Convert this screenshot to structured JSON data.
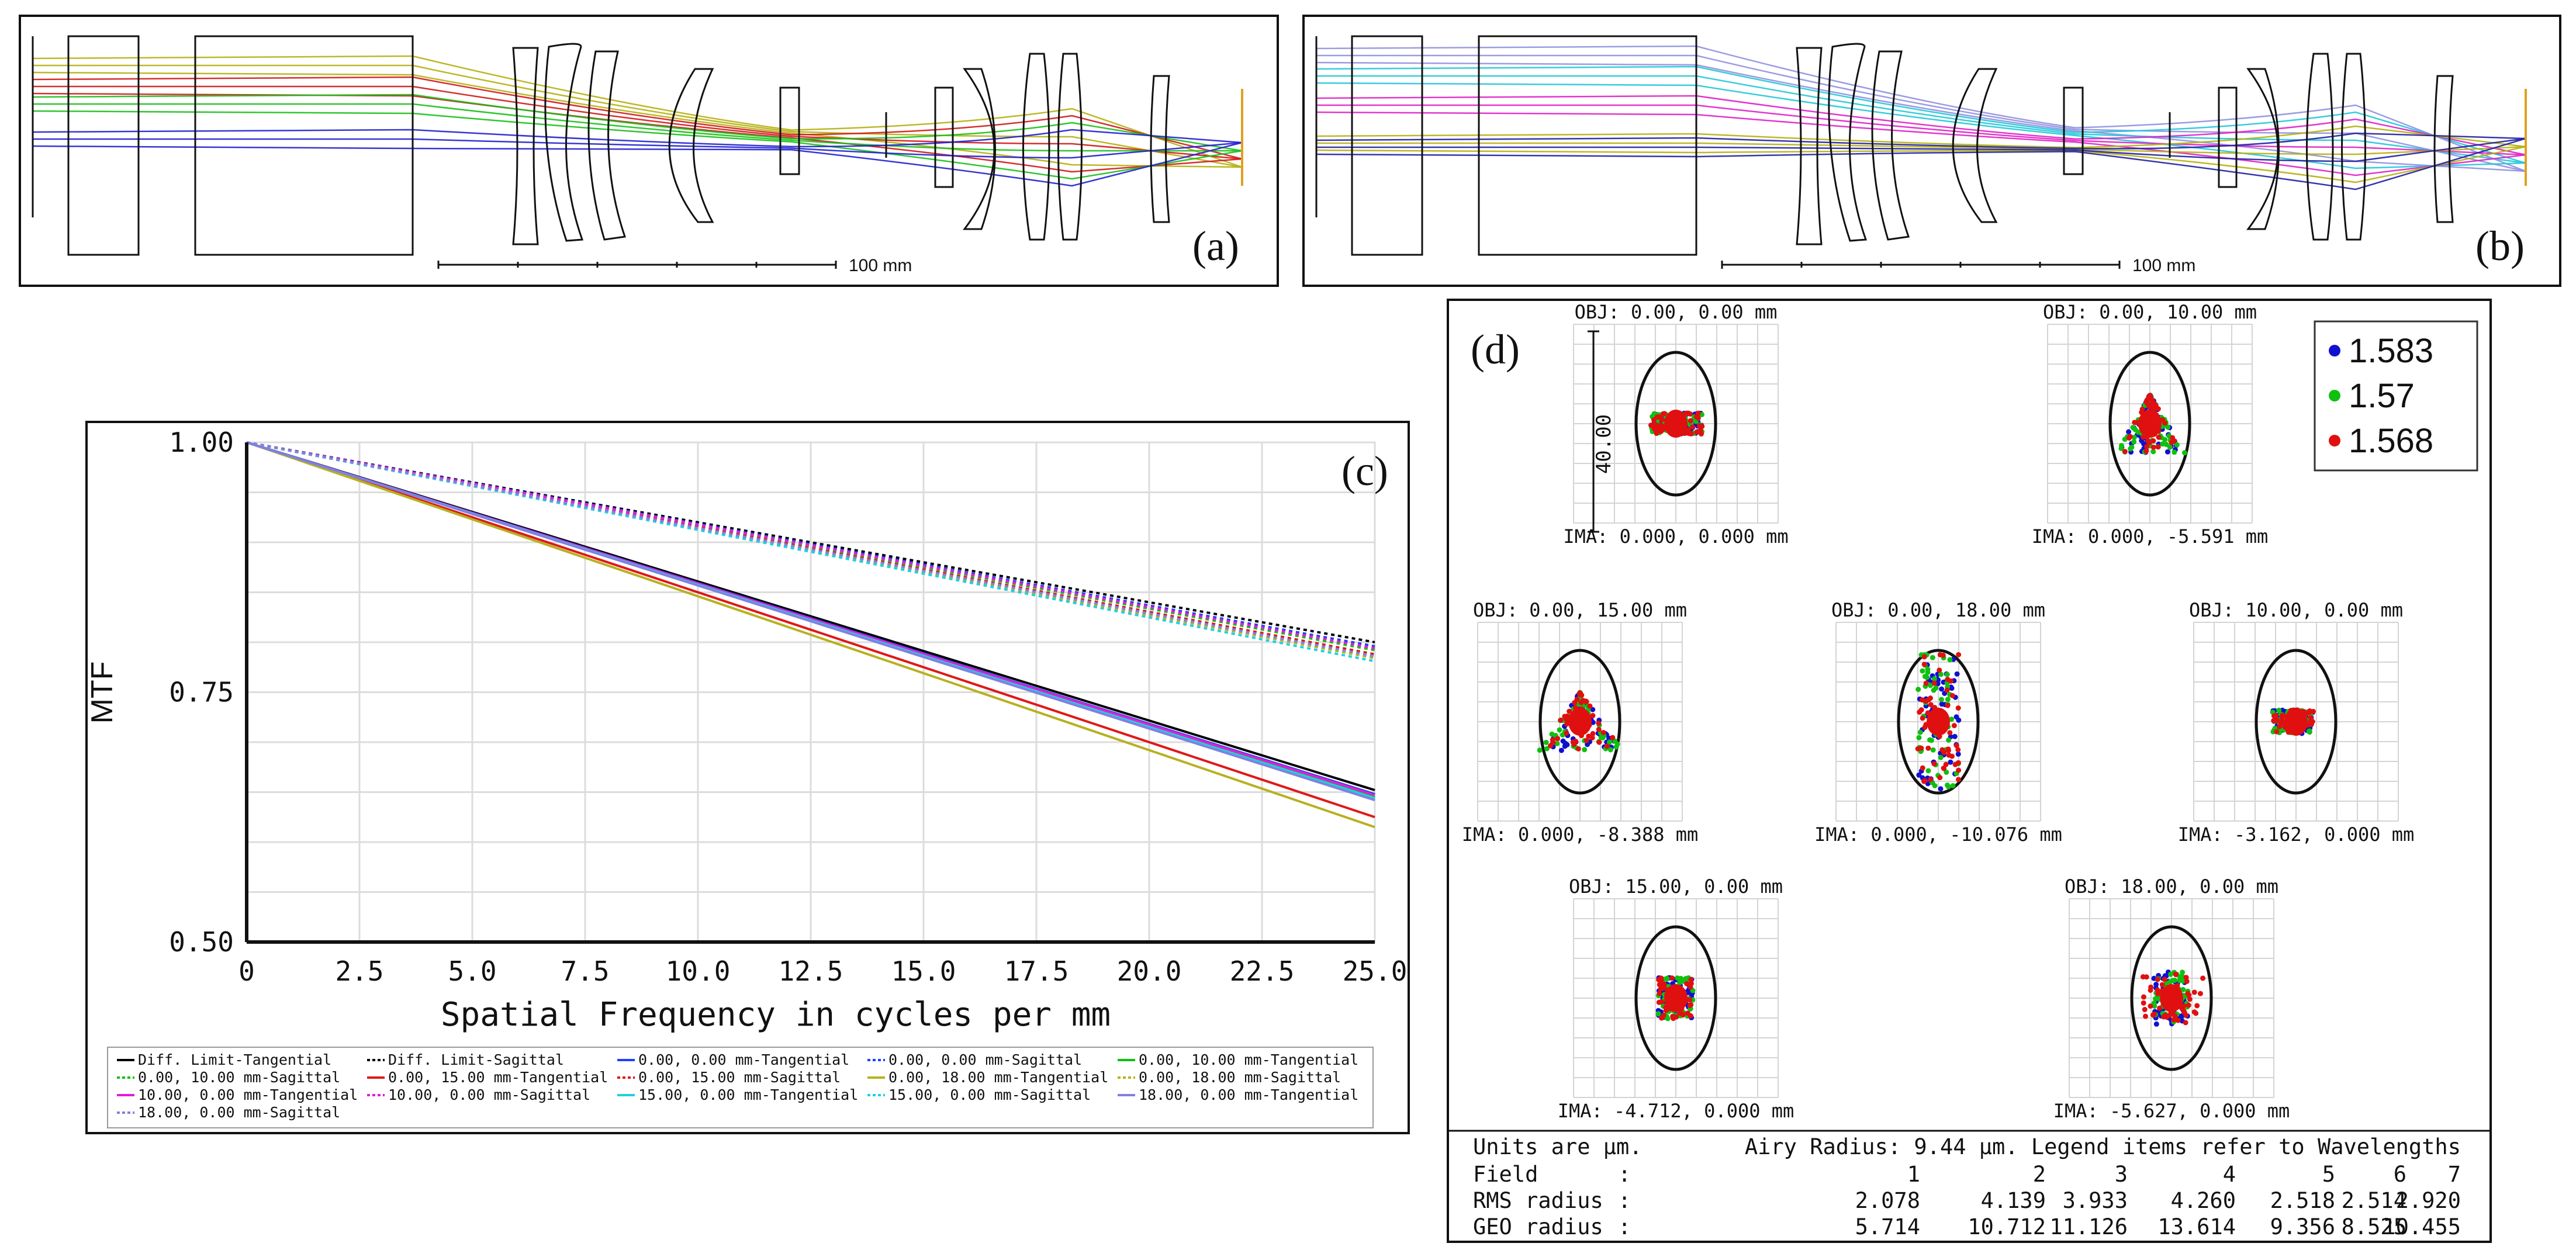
{
  "panels": {
    "a": {
      "tag": "(a)",
      "scale_label": "100 mm",
      "ray_colors": [
        "#b5b010",
        "#d01818",
        "#18c018",
        "#2020d0"
      ]
    },
    "b": {
      "tag": "(b)",
      "scale_label": "100 mm",
      "ray_colors": [
        "#9090e0",
        "#20c8d8",
        "#e020c8",
        "#b5b010",
        "#2020a0"
      ]
    },
    "c": {
      "tag": "(c)"
    },
    "d": {
      "tag": "(d)"
    }
  },
  "chart_data": {
    "type": "line",
    "title": "",
    "xlabel": "Spatial Frequency in cycles per mm",
    "ylabel": "MTF",
    "xlim": [
      0,
      25
    ],
    "ylim": [
      0.5,
      1.0
    ],
    "x_ticks": [
      "0",
      "2.5",
      "5.0",
      "7.5",
      "10.0",
      "12.5",
      "15.0",
      "17.5",
      "20.0",
      "22.5",
      "25.0"
    ],
    "y_ticks": [
      "0.50",
      "0.75",
      "1.00"
    ],
    "x": [
      0,
      25
    ],
    "series": [
      {
        "name": "Diff. Limit-Tangential",
        "color": "#000000",
        "dash": false,
        "values": [
          1.0,
          0.652
        ]
      },
      {
        "name": "Diff. Limit-Sagittal",
        "color": "#000000",
        "dash": true,
        "values": [
          1.0,
          0.8
        ]
      },
      {
        "name": "0.00, 0.00 mm-Tangential",
        "color": "#2040ff",
        "dash": false,
        "values": [
          1.0,
          0.648
        ]
      },
      {
        "name": "0.00, 0.00 mm-Sagittal",
        "color": "#2040ff",
        "dash": true,
        "values": [
          1.0,
          0.796
        ]
      },
      {
        "name": "0.00, 10.00 mm-Tangential",
        "color": "#10c010",
        "dash": false,
        "values": [
          1.0,
          0.645
        ]
      },
      {
        "name": "0.00, 10.00 mm-Sagittal",
        "color": "#10c010",
        "dash": true,
        "values": [
          1.0,
          0.792
        ]
      },
      {
        "name": "0.00, 15.00 mm-Tangential",
        "color": "#e01818",
        "dash": false,
        "values": [
          1.0,
          0.625
        ]
      },
      {
        "name": "0.00, 15.00 mm-Sagittal",
        "color": "#e01818",
        "dash": true,
        "values": [
          1.0,
          0.788
        ]
      },
      {
        "name": "0.00, 18.00 mm-Tangential",
        "color": "#b8b020",
        "dash": false,
        "values": [
          1.0,
          0.615
        ]
      },
      {
        "name": "0.00, 18.00 mm-Sagittal",
        "color": "#b8b020",
        "dash": true,
        "values": [
          1.0,
          0.784
        ]
      },
      {
        "name": "10.00, 0.00 mm-Tangential",
        "color": "#e020d0",
        "dash": false,
        "values": [
          1.0,
          0.647
        ]
      },
      {
        "name": "10.00, 0.00 mm-Sagittal",
        "color": "#e020d0",
        "dash": true,
        "values": [
          1.0,
          0.794
        ]
      },
      {
        "name": "15.00, 0.00 mm-Tangential",
        "color": "#20d0e0",
        "dash": false,
        "values": [
          1.0,
          0.644
        ]
      },
      {
        "name": "15.00, 0.00 mm-Sagittal",
        "color": "#20d0e0",
        "dash": true,
        "values": [
          1.0,
          0.781
        ]
      },
      {
        "name": "18.00, 0.00 mm-Tangential",
        "color": "#8080e0",
        "dash": false,
        "values": [
          1.0,
          0.642
        ]
      },
      {
        "name": "18.00, 0.00 mm-Sagittal",
        "color": "#8080e0",
        "dash": true,
        "values": [
          1.0,
          0.786
        ]
      }
    ]
  },
  "spot": {
    "legend": [
      {
        "label": "1.583",
        "color": "#1010d0"
      },
      {
        "label": "1.57",
        "color": "#10c010"
      },
      {
        "label": "1.568",
        "color": "#e01010"
      }
    ],
    "scale_label": "40.00",
    "fields": [
      {
        "obj": "OBJ: 0.00, 0.00 mm",
        "ima": "IMA: 0.000, 0.000 mm",
        "shape": "hbar"
      },
      {
        "obj": "OBJ: 0.00, 10.00 mm",
        "ima": "IMA: 0.000, -5.591 mm",
        "shape": "fan"
      },
      {
        "obj": "OBJ: 0.00, 15.00 mm",
        "ima": "IMA: 0.000, -8.388 mm",
        "shape": "fan-wide"
      },
      {
        "obj": "OBJ: 0.00, 18.00 mm",
        "ima": "IMA: 0.000, -10.076 mm",
        "shape": "tall"
      },
      {
        "obj": "OBJ: 10.00, 0.00 mm",
        "ima": "IMA: -3.162, 0.000 mm",
        "shape": "side"
      },
      {
        "obj": "OBJ: 15.00, 0.00 mm",
        "ima": "IMA: -4.712, 0.000 mm",
        "shape": "box"
      },
      {
        "obj": "OBJ: 18.00, 0.00 mm",
        "ima": "IMA: -5.627, 0.000 mm",
        "shape": "box-wide"
      }
    ],
    "table": {
      "units": "Units are µm.",
      "airy": "Airy Radius: 9.44 µm. Legend items refer to Wavelengths",
      "field_label": "Field",
      "rms_label": "RMS radius",
      "geo_label": "GEO radius",
      "sep": ":",
      "fields": [
        "1",
        "2",
        "3",
        "4",
        "5",
        "6",
        "7"
      ],
      "rms": [
        "2.078",
        "4.139",
        "3.933",
        "4.260",
        "2.518",
        "2.514",
        "2.920"
      ],
      "geo": [
        "5.714",
        "10.712",
        "11.126",
        "13.614",
        "9.356",
        "8.525",
        "10.455"
      ]
    }
  }
}
